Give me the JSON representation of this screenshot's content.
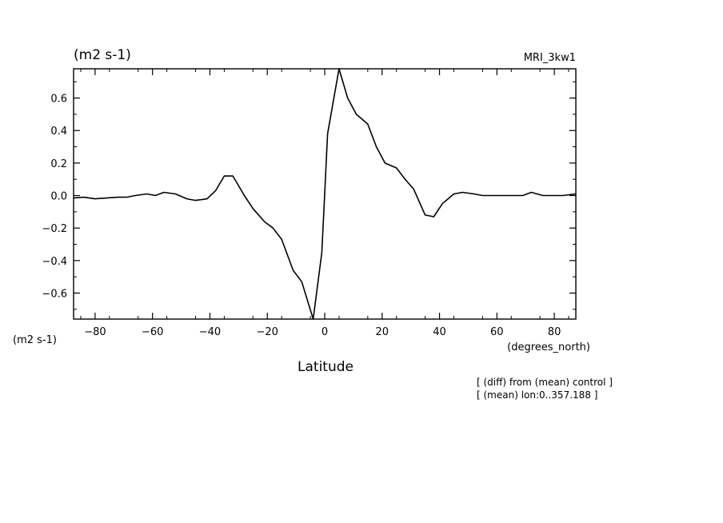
{
  "chart_data": {
    "type": "line",
    "units_label": "(m2 s-1)",
    "model_label": "MRI_3kw1",
    "yaxis_units_label": "(m2 s-1)",
    "xaxis_units_label": "(degrees_north)",
    "xlabel": "Latitude",
    "notes": [
      "[ (diff) from (mean) control ]",
      "[ (mean) lon:0..357.188 ]"
    ],
    "xlim": [
      -87.5,
      87.5
    ],
    "ylim": [
      -0.76,
      0.78
    ],
    "x_ticks": [
      -80,
      -60,
      -40,
      -20,
      0,
      20,
      40,
      60,
      80
    ],
    "y_ticks": [
      -0.6,
      -0.4,
      -0.2,
      0.0,
      0.2,
      0.4,
      0.6
    ],
    "x_tick_labels": [
      "−80",
      "−60",
      "−40",
      "−20",
      "0",
      "20",
      "40",
      "60",
      "80"
    ],
    "y_tick_labels": [
      "−0.6",
      "−0.4",
      "−0.2",
      "0.0",
      "0.2",
      "0.4",
      "0.6"
    ],
    "grid": false,
    "series": [
      {
        "x": [
          -87.5,
          -84,
          -80,
          -76,
          -72,
          -69,
          -66,
          -62,
          -59,
          -56,
          -52,
          -48,
          -45,
          -41,
          -38,
          -35,
          -32,
          -28,
          -25,
          -21,
          -18,
          -15,
          -11,
          -8,
          -4,
          -1,
          1,
          5,
          8,
          11,
          15,
          18,
          21,
          25,
          28,
          31,
          35,
          38,
          41,
          45,
          48,
          52,
          55,
          59,
          62,
          66,
          69,
          72,
          76,
          79,
          83,
          87.5
        ],
        "y": [
          -0.015,
          -0.01,
          -0.02,
          -0.015,
          -0.01,
          -0.01,
          0.0,
          0.01,
          0.0,
          0.02,
          0.01,
          -0.02,
          -0.03,
          -0.02,
          0.03,
          0.12,
          0.12,
          0.0,
          -0.08,
          -0.16,
          -0.2,
          -0.27,
          -0.46,
          -0.53,
          -0.76,
          -0.35,
          0.38,
          0.78,
          0.6,
          0.5,
          0.44,
          0.3,
          0.2,
          0.17,
          0.1,
          0.04,
          -0.12,
          -0.13,
          -0.05,
          0.01,
          0.02,
          0.01,
          0.0,
          0.0,
          0.0,
          0.0,
          0.0,
          0.02,
          0.0,
          0.0,
          0.0,
          0.01
        ]
      }
    ]
  }
}
